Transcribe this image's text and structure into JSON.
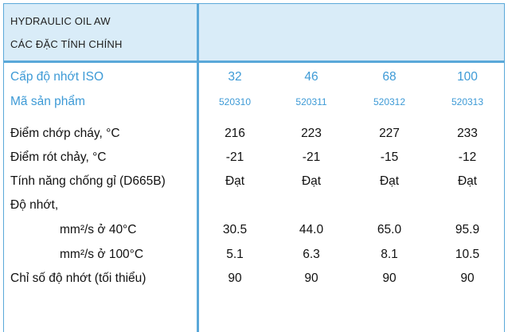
{
  "header": {
    "line1": "HYDRAULIC OIL AW",
    "line2": "CÁC ĐẶC TÍNH CHÍNH"
  },
  "colors": {
    "accent": "#3d9ad6",
    "header_bg": "#d9ecf8",
    "border": "#5aa8d9"
  },
  "table": {
    "rows": [
      {
        "label": "Cấp độ nhớt ISO",
        "values": [
          "32",
          "46",
          "68",
          "100"
        ]
      },
      {
        "label": "Mã sản phẩm",
        "values": [
          "520310",
          "520311",
          "520312",
          "520313"
        ]
      },
      {
        "label": "Điểm chớp cháy, °C",
        "values": [
          "216",
          "223",
          "227",
          "233"
        ]
      },
      {
        "label": "Điểm rót chảy, °C",
        "values": [
          "-21",
          "-21",
          "-15",
          "-12"
        ]
      },
      {
        "label": "Tính năng chống gỉ (D665B)",
        "values": [
          "Đạt",
          "Đạt",
          "Đạt",
          "Đạt"
        ]
      },
      {
        "label": "Độ nhớt,",
        "values": [
          "",
          "",
          "",
          ""
        ]
      },
      {
        "label": "mm²/s ở 40°C",
        "values": [
          "30.5",
          "44.0",
          "65.0",
          "95.9"
        ]
      },
      {
        "label": "mm²/s ở 100°C",
        "values": [
          "5.1",
          "6.3",
          "8.1",
          "10.5"
        ]
      },
      {
        "label": "Chỉ số độ nhớt (tối thiểu)",
        "values": [
          "90",
          "90",
          "90",
          "90"
        ]
      }
    ]
  }
}
